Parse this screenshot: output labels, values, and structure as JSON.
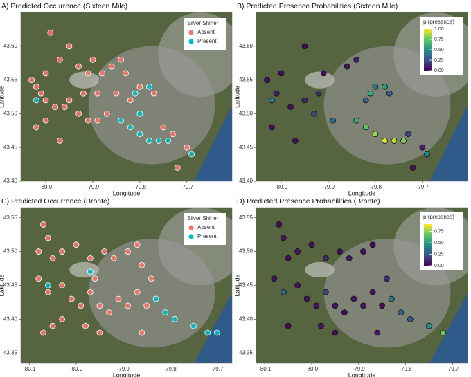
{
  "chart_data": [
    {
      "type": "scatter",
      "title": "A) Predicted Occurrence (Sixteen Mile)",
      "x_label": "Longitude",
      "y_label": "Latitude",
      "xlim": [
        -80.053,
        -79.604
      ],
      "ylim": [
        43.4,
        43.65
      ],
      "xticks": [
        {
          "value": -80.0,
          "label": "-80.0"
        },
        -79.9,
        -79.8,
        -79.7
      ],
      "yticks": [
        {
          "value": 43.4,
          "label": "43.40"
        },
        43.45,
        {
          "value": 43.5,
          "label": "43.50"
        },
        43.55,
        {
          "value": 43.6,
          "label": "43.60"
        }
      ],
      "legend_title": "Silver Shiner",
      "legend": "top-right",
      "series": [
        {
          "name": "Absent",
          "color": "#F8766D",
          "x": [
            -80.03,
            -80.02,
            -80.0,
            -79.99,
            -79.95,
            -79.93,
            -79.91,
            -79.88,
            -79.86,
            -79.84,
            -79.83,
            -79.82,
            -79.85,
            -80.01,
            -80.0,
            -79.98,
            -79.96,
            -79.95,
            -79.93,
            -79.91,
            -79.89,
            -79.87,
            -80.02,
            -80.0,
            -79.97,
            -79.92,
            -79.89,
            -79.8,
            -79.77,
            -79.75,
            -79.73,
            -79.7,
            -79.72,
            -79.97,
            -79.9
          ],
          "y": [
            43.55,
            43.54,
            43.56,
            43.62,
            43.6,
            43.57,
            43.56,
            43.56,
            43.57,
            43.58,
            43.56,
            43.52,
            43.53,
            43.53,
            43.52,
            43.51,
            43.51,
            43.52,
            43.5,
            43.49,
            43.49,
            43.5,
            43.48,
            43.49,
            43.46,
            43.53,
            43.53,
            43.54,
            43.53,
            43.48,
            43.47,
            43.45,
            43.42,
            43.58,
            43.58
          ]
        },
        {
          "name": "Present",
          "color": "#00BFC4",
          "x": [
            -79.84,
            -79.82,
            -79.8,
            -79.78,
            -79.76,
            -79.74,
            -79.78,
            -79.8,
            -79.69,
            -80.02,
            -79.81
          ],
          "y": [
            43.49,
            43.48,
            43.47,
            43.46,
            43.46,
            43.46,
            43.54,
            43.5,
            43.44,
            43.52,
            43.53
          ]
        }
      ]
    },
    {
      "type": "scatter",
      "title": "B) Predicted Presence Probabilities (Sixteen Mile)",
      "x_label": "Longitude",
      "y_label": "Latitude",
      "xlim": [
        -80.053,
        -79.604
      ],
      "ylim": [
        43.4,
        43.65
      ],
      "xticks": [
        {
          "value": -80.0,
          "label": "-80.0"
        },
        -79.9,
        -79.8,
        -79.7
      ],
      "yticks": [
        {
          "value": 43.4,
          "label": "43.40"
        },
        43.45,
        {
          "value": 43.5,
          "label": "43.50"
        },
        43.55,
        {
          "value": 43.6,
          "label": "43.60"
        }
      ],
      "colorbar": {
        "title": "p (presence)",
        "lim": [
          0,
          1
        ],
        "colors": [
          "#440154",
          "#3b528b",
          "#21918c",
          "#5ec962",
          "#fde725"
        ],
        "ticks": [
          {
            "value": 0,
            "label": "0.00"
          },
          0.25,
          {
            "value": 0.5,
            "label": "0.50"
          },
          0.75,
          {
            "value": 1,
            "label": "1.00"
          }
        ]
      },
      "x": [
        -80.03,
        -80.0,
        -79.95,
        -79.91,
        -79.86,
        -79.84,
        -79.82,
        -80.01,
        -79.98,
        -79.95,
        -79.93,
        -79.89,
        -80.02,
        -79.97,
        -79.92,
        -79.8,
        -79.77,
        -79.73,
        -79.7,
        -79.72,
        -79.84,
        -79.82,
        -79.8,
        -79.78,
        -79.76,
        -79.74,
        -79.78,
        -79.69,
        -80.02,
        -79.81
      ],
      "y": [
        43.55,
        43.56,
        43.6,
        43.56,
        43.57,
        43.58,
        43.52,
        43.53,
        43.51,
        43.52,
        43.5,
        43.49,
        43.48,
        43.46,
        43.53,
        43.54,
        43.53,
        43.47,
        43.45,
        43.42,
        43.49,
        43.48,
        43.47,
        43.46,
        43.46,
        43.46,
        43.54,
        43.44,
        43.52,
        43.53
      ],
      "p": [
        0.05,
        0.03,
        0.02,
        0.04,
        0.06,
        0.1,
        0.3,
        0.08,
        0.05,
        0.12,
        0.2,
        0.35,
        0.04,
        0.03,
        0.15,
        0.4,
        0.3,
        0.2,
        0.1,
        0.05,
        0.6,
        0.75,
        0.85,
        0.95,
        0.9,
        0.8,
        0.55,
        0.45,
        0.4,
        0.6
      ]
    },
    {
      "type": "scatter",
      "title": "C) Predicted Occurrence (Bronte)",
      "x_label": "Longitude",
      "y_label": "Latitude",
      "xlim": [
        -80.118,
        -79.668
      ],
      "ylim": [
        43.335,
        43.565
      ],
      "xticks": [
        -80.1,
        {
          "value": -80.0,
          "label": "-80.0"
        },
        -79.9,
        -79.8,
        -79.7
      ],
      "yticks": [
        43.35,
        {
          "value": 43.4,
          "label": "43.40"
        },
        43.45,
        {
          "value": 43.5,
          "label": "43.50"
        },
        43.55
      ],
      "legend_title": "Silver Shiner",
      "legend": "top-right",
      "series": [
        {
          "name": "Absent",
          "color": "#F8766D",
          "x": [
            -80.07,
            -80.06,
            -80.08,
            -80.05,
            -80.03,
            -80.0,
            -79.97,
            -79.94,
            -79.92,
            -79.89,
            -79.87,
            -79.86,
            -79.84,
            -80.08,
            -80.06,
            -80.03,
            -80.01,
            -79.99,
            -79.97,
            -79.95,
            -79.93,
            -79.91,
            -79.89,
            -79.87,
            -79.85,
            -80.05,
            -80.03,
            -79.98,
            -79.95,
            -80.07,
            -79.86,
            -79.96
          ],
          "y": [
            43.54,
            43.52,
            43.5,
            43.49,
            43.5,
            43.51,
            43.49,
            43.5,
            43.49,
            43.5,
            43.51,
            43.48,
            43.46,
            43.46,
            43.44,
            43.45,
            43.43,
            43.42,
            43.44,
            43.42,
            43.41,
            43.43,
            43.42,
            43.44,
            43.42,
            43.39,
            43.4,
            43.39,
            43.38,
            43.38,
            43.38,
            43.46
          ]
        },
        {
          "name": "Present",
          "color": "#00BFC4",
          "x": [
            -80.06,
            -79.97,
            -79.83,
            -79.81,
            -79.79,
            -79.75,
            -79.72,
            -79.7
          ],
          "y": [
            43.45,
            43.47,
            43.43,
            43.41,
            43.4,
            43.39,
            43.38,
            43.38
          ]
        }
      ]
    },
    {
      "type": "scatter",
      "title": "D) Predicted Presence Probabilities (Bronte)",
      "x_label": "Longitude",
      "y_label": "Latitude",
      "xlim": [
        -80.118,
        -79.668
      ],
      "ylim": [
        43.335,
        43.565
      ],
      "xticks": [
        -80.1,
        {
          "value": -80.0,
          "label": "-80.0"
        },
        -79.9,
        -79.8,
        -79.7
      ],
      "yticks": [
        43.35,
        {
          "value": 43.4,
          "label": "43.40"
        },
        43.45,
        {
          "value": 43.5,
          "label": "43.50"
        },
        43.55
      ],
      "colorbar": {
        "title": "p (presence)",
        "lim": [
          0,
          0.91
        ],
        "colors": [
          "#440154",
          "#3b528b",
          "#21918c",
          "#5ec962",
          "#fde725"
        ],
        "ticks": [
          {
            "value": 0,
            "label": "0.00"
          },
          0.25,
          {
            "value": 0.5,
            "label": "0.50"
          },
          0.75
        ]
      },
      "x": [
        -80.07,
        -80.06,
        -80.05,
        -80.03,
        -80.0,
        -79.97,
        -79.94,
        -79.92,
        -79.89,
        -79.87,
        -79.84,
        -80.08,
        -80.06,
        -80.03,
        -80.01,
        -79.99,
        -79.97,
        -79.95,
        -79.93,
        -79.91,
        -79.89,
        -79.87,
        -79.85,
        -80.05,
        -79.98,
        -79.95,
        -79.86,
        -79.83,
        -79.81,
        -79.79,
        -79.75,
        -79.72
      ],
      "y": [
        43.54,
        43.52,
        43.49,
        43.5,
        43.51,
        43.49,
        43.5,
        43.49,
        43.5,
        43.51,
        43.46,
        43.46,
        43.44,
        43.45,
        43.43,
        43.42,
        43.44,
        43.42,
        43.41,
        43.43,
        43.42,
        43.44,
        43.42,
        43.39,
        43.39,
        43.38,
        43.38,
        43.43,
        43.41,
        43.4,
        43.39,
        43.38
      ],
      "p": [
        0.03,
        0.05,
        0.04,
        0.06,
        0.05,
        0.1,
        0.04,
        0.08,
        0.05,
        0.03,
        0.12,
        0.04,
        0.3,
        0.06,
        0.05,
        0.04,
        0.2,
        0.05,
        0.03,
        0.06,
        0.07,
        0.05,
        0.04,
        0.03,
        0.05,
        0.04,
        0.06,
        0.35,
        0.3,
        0.25,
        0.45,
        0.7
      ]
    }
  ]
}
